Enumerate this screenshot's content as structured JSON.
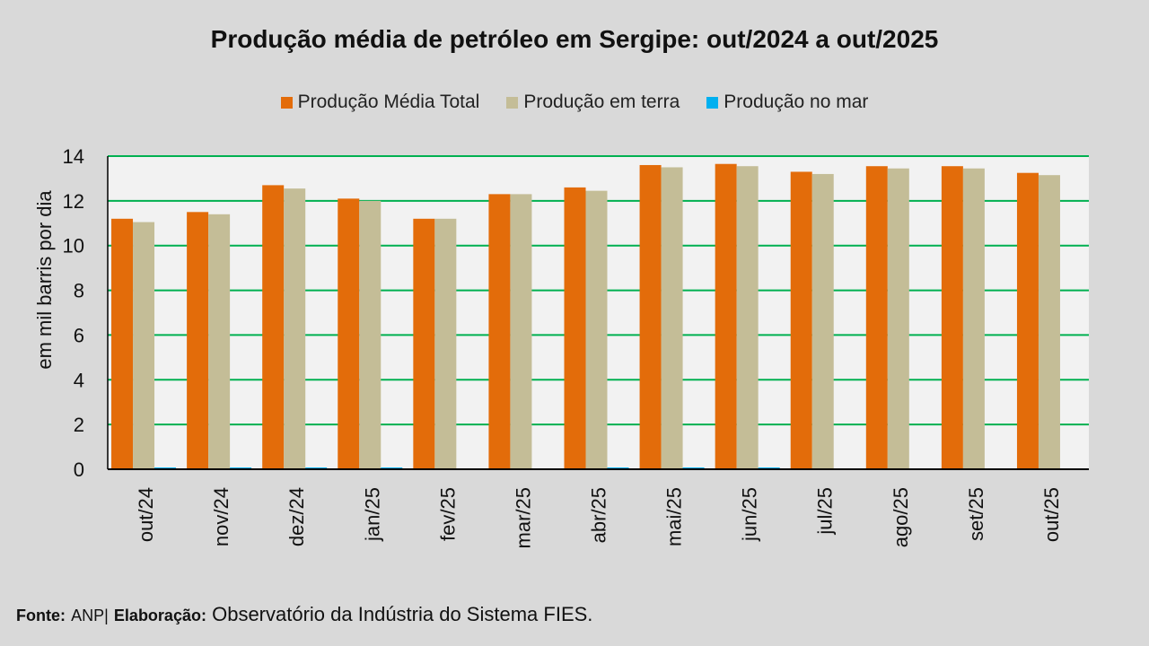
{
  "chart_data": {
    "type": "bar",
    "title": "Produção média de petróleo em Sergipe: out/2024 a out/2025",
    "xlabel": "",
    "ylabel": "em mil barris por dia",
    "ylim": [
      0,
      14
    ],
    "yticks": [
      0,
      2,
      4,
      6,
      8,
      10,
      12,
      14
    ],
    "grid": true,
    "legend_position": "top-center",
    "categories": [
      "out/24",
      "nov/24",
      "dez/24",
      "jan/25",
      "fev/25",
      "mar/25",
      "abr/25",
      "mai/25",
      "jun/25",
      "jul/25",
      "ago/25",
      "set/25",
      "out/25"
    ],
    "series": [
      {
        "name": "Produção Média Total",
        "color": "#e36c0a",
        "values": [
          11.2,
          11.5,
          12.7,
          12.1,
          11.2,
          12.3,
          12.6,
          13.6,
          13.65,
          13.3,
          13.55,
          13.55,
          13.25
        ]
      },
      {
        "name": "Produção em terra",
        "color": "#c4bd97",
        "values": [
          11.05,
          11.4,
          12.55,
          12.0,
          11.2,
          12.3,
          12.45,
          13.5,
          13.55,
          13.2,
          13.45,
          13.45,
          13.15
        ]
      },
      {
        "name": "Produção no mar",
        "color": "#00b0f0",
        "values": [
          0.08,
          0.08,
          0.08,
          0.08,
          0.02,
          0.02,
          0.08,
          0.08,
          0.08,
          0.02,
          0.02,
          0.02,
          0.02
        ]
      }
    ]
  },
  "footer": {
    "source_label": "Fonte:",
    "source_value": "ANP|",
    "credit_label": "Elaboração:",
    "credit_value": "Observatório da Indústria do Sistema FIES."
  },
  "colors": {
    "background": "#d9d9d9",
    "plot_background": "#f2f2f2",
    "gridline": "#00b050",
    "axis": "#000000"
  }
}
